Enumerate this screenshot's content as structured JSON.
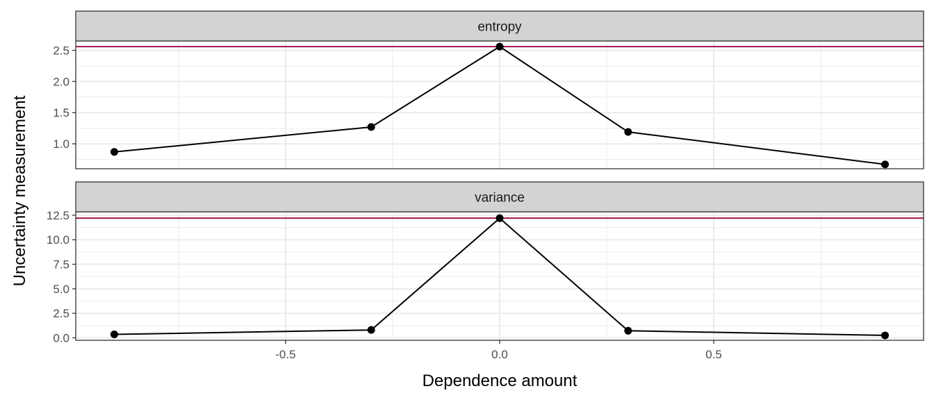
{
  "chart_data": {
    "type": "line",
    "xlabel": "Dependence amount",
    "ylabel": "Uncertainty measurement",
    "xlim": [
      -0.99,
      0.99
    ],
    "x_ticks": [
      -0.5,
      0.0,
      0.5
    ],
    "x_tick_labels": [
      "-0.5",
      "0.0",
      "0.5"
    ],
    "grid": true,
    "facets": [
      {
        "label": "entropy",
        "x": [
          -0.9,
          -0.3,
          0.0,
          0.3,
          0.9
        ],
        "y": [
          0.87,
          1.27,
          2.56,
          1.19,
          0.67
        ],
        "reference_line": 2.56,
        "ylim": [
          0.6,
          2.65
        ],
        "y_ticks": [
          1.0,
          1.5,
          2.0,
          2.5
        ],
        "y_tick_labels": [
          "1.0",
          "1.5",
          "2.0",
          "2.5"
        ]
      },
      {
        "label": "variance",
        "x": [
          -0.9,
          -0.3,
          0.0,
          0.3,
          0.9
        ],
        "y": [
          0.35,
          0.8,
          12.2,
          0.72,
          0.25
        ],
        "reference_line": 12.2,
        "ylim": [
          -0.25,
          12.85
        ],
        "y_ticks": [
          0.0,
          2.5,
          5.0,
          7.5,
          10.0,
          12.5
        ],
        "y_tick_labels": [
          "0.0",
          "2.5",
          "5.0",
          "7.5",
          "10.0",
          "12.5"
        ]
      }
    ],
    "colors": {
      "reference_line": "#a0144f",
      "series_line": "#000000",
      "strip_fill": "#d3d3d3",
      "grid": "#ebebeb"
    }
  }
}
